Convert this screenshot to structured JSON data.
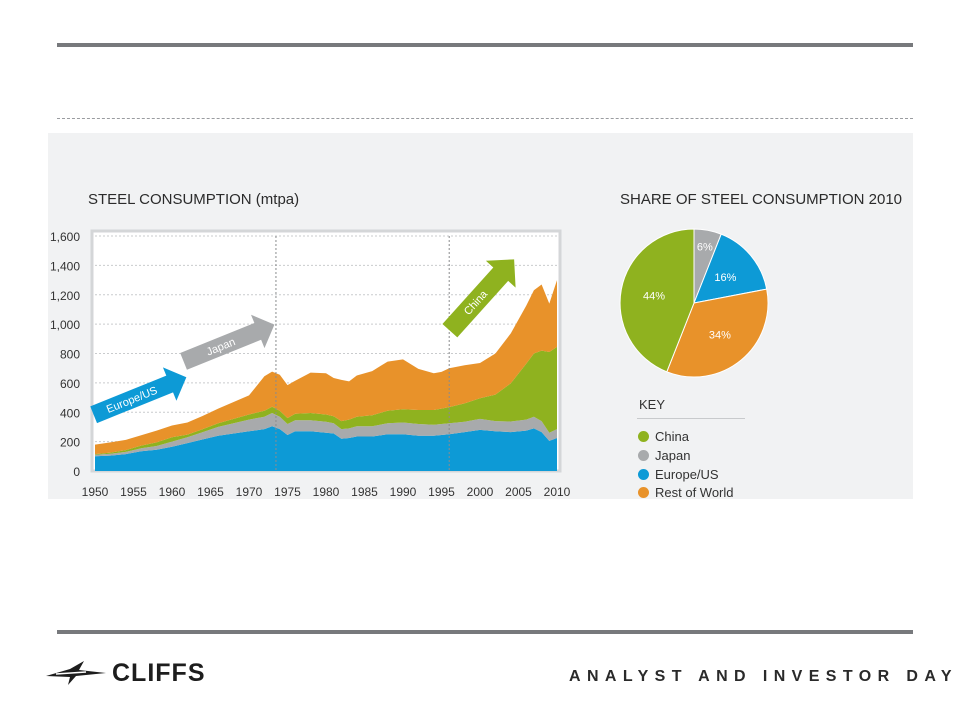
{
  "slide": {
    "brand": "CLIFFS",
    "footer": "ANALYST AND INVESTOR DAY"
  },
  "colors": {
    "china": "#8fb21f",
    "japan": "#a8aaac",
    "europe_us": "#0d9ad6",
    "rest_of_world": "#e8922a",
    "grid": "#c9cbcd",
    "plot_bg": "#ffffff"
  },
  "chart_data": [
    {
      "type": "area",
      "title": "STEEL CONSUMPTION (mtpa)",
      "stacked": true,
      "ylim": [
        0,
        1600
      ],
      "yticks": [
        0,
        200,
        400,
        600,
        800,
        1000,
        1200,
        1400,
        1600
      ],
      "ytick_labels": [
        "0",
        "200",
        "400",
        "600",
        "800",
        "1,000",
        "1,200",
        "1,400",
        "1,600"
      ],
      "xlim": [
        1950,
        2010
      ],
      "xticks": [
        1950,
        1955,
        1960,
        1965,
        1970,
        1975,
        1980,
        1985,
        1990,
        1995,
        2000,
        2005,
        2010
      ],
      "xtick_labels": [
        "1950",
        "1955",
        "1960",
        "1965",
        "1970",
        "1975",
        "1980",
        "1985",
        "1990",
        "1995",
        "2000",
        "2005",
        "2010"
      ],
      "vertical_markers": [
        1973.5,
        1996
      ],
      "x": [
        1950,
        1952,
        1954,
        1956,
        1958,
        1960,
        1962,
        1964,
        1966,
        1968,
        1970,
        1972,
        1973,
        1974,
        1975,
        1976,
        1978,
        1980,
        1981,
        1982,
        1983,
        1984,
        1986,
        1988,
        1990,
        1992,
        1994,
        1995,
        1996,
        1998,
        2000,
        2002,
        2004,
        2006,
        2007,
        2008,
        2009,
        2010
      ],
      "series": [
        {
          "name": "Europe/US",
          "values": [
            100,
            105,
            115,
            135,
            145,
            165,
            190,
            215,
            240,
            255,
            270,
            285,
            305,
            285,
            245,
            270,
            270,
            260,
            255,
            220,
            225,
            235,
            235,
            250,
            250,
            240,
            240,
            245,
            250,
            265,
            280,
            270,
            265,
            275,
            290,
            265,
            205,
            225
          ]
        },
        {
          "name": "Japan",
          "values": [
            10,
            12,
            15,
            20,
            25,
            35,
            40,
            50,
            60,
            70,
            80,
            85,
            90,
            85,
            75,
            75,
            75,
            75,
            70,
            65,
            65,
            70,
            70,
            75,
            80,
            80,
            75,
            75,
            75,
            70,
            75,
            70,
            72,
            75,
            80,
            75,
            55,
            60
          ]
        },
        {
          "name": "China",
          "values": [
            5,
            8,
            12,
            18,
            25,
            30,
            18,
            20,
            25,
            30,
            35,
            40,
            42,
            40,
            40,
            45,
            50,
            50,
            48,
            55,
            60,
            65,
            75,
            85,
            90,
            95,
            100,
            105,
            110,
            125,
            140,
            180,
            260,
            380,
            430,
            480,
            550,
            560
          ]
        },
        {
          "name": "Rest of World",
          "values": [
            65,
            70,
            70,
            70,
            80,
            80,
            82,
            90,
            100,
            115,
            130,
            235,
            240,
            245,
            225,
            225,
            275,
            280,
            260,
            280,
            260,
            280,
            300,
            335,
            340,
            280,
            250,
            250,
            265,
            260,
            240,
            280,
            340,
            395,
            430,
            450,
            330,
            455
          ]
        }
      ],
      "annotations": [
        "Europe/US",
        "Japan",
        "China"
      ]
    },
    {
      "type": "pie",
      "title": "SHARE OF STEEL CONSUMPTION 2010",
      "labels": [
        "China",
        "Japan",
        "Europe/US",
        "Rest of World"
      ],
      "values": [
        44,
        6,
        16,
        34
      ],
      "value_labels": [
        "44%",
        "6%",
        "16%",
        "34%"
      ]
    }
  ],
  "key": {
    "title": "KEY",
    "items": [
      "China",
      "Japan",
      "Europe/US",
      "Rest of World"
    ]
  }
}
